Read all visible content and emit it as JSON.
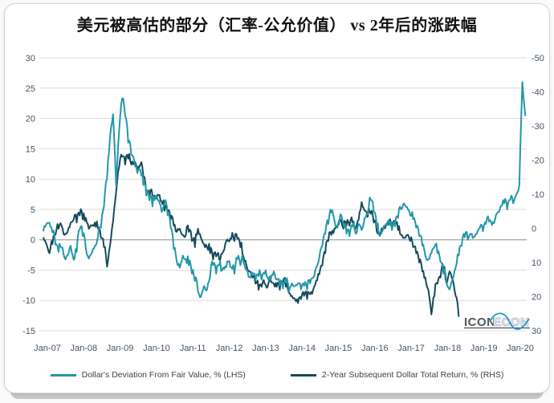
{
  "header": {
    "title": "美元被高估的部分（汇率-公允价值） vs 2年后的涨跌幅"
  },
  "watermark": {
    "text_bold": "ICON",
    "text_light": "ECON"
  },
  "chart_data": {
    "type": "line",
    "title": "美元被高估的部分（汇率-公允价值） vs 2年后的涨跌幅",
    "x_start": "Jan-07",
    "x_frequency": "monthly",
    "x_tick_labels": [
      "Jan-07",
      "Jan-08",
      "Jan-09",
      "Jan-10",
      "Jan-11",
      "Jan-12",
      "Jan-13",
      "Jan-14",
      "Jan-15",
      "Jan-16",
      "Jan-17",
      "Jan-18",
      "Jan-19",
      "Jan-20"
    ],
    "left_axis": {
      "ticks": [
        30,
        25,
        20,
        15,
        10,
        5,
        0,
        -5,
        -10,
        -15
      ],
      "range": [
        -15,
        30
      ],
      "inverted": false
    },
    "right_axis": {
      "ticks": [
        -50,
        -40,
        -30,
        -20,
        -10,
        0,
        10,
        20,
        30
      ],
      "range": [
        -50,
        30
      ],
      "inverted": true
    },
    "grid": true,
    "legend_position": "bottom",
    "series": [
      {
        "name": "Dollar's Deviation From Fair Value, % (LHS)",
        "axis": "left",
        "color": "#2397A9",
        "values": [
          1.5,
          2.6,
          2.8,
          1.2,
          -0.8,
          -2.0,
          -1.3,
          -3.0,
          -2.6,
          -1.0,
          -3.3,
          -2.0,
          1.7,
          0.6,
          -1.4,
          -3.1,
          -2.2,
          -1.0,
          0.5,
          2.0,
          5.5,
          10.0,
          17.0,
          20.7,
          9.0,
          18.0,
          23.3,
          20.5,
          16.0,
          14.0,
          13.0,
          11.0,
          11.5,
          9.0,
          7.5,
          6.5,
          5.5,
          7.2,
          6.5,
          4.6,
          6.0,
          4.0,
          2.0,
          -1.5,
          -3.6,
          -4.6,
          -2.6,
          -3.2,
          -4.2,
          -5.6,
          -6.8,
          -8.6,
          -9.4,
          -7.6,
          -8.2,
          -6.0,
          -4.2,
          -5.6,
          -4.2,
          -5.0,
          -4.4,
          -3.6,
          -4.6,
          -5.6,
          -3.2,
          -4.2,
          -3.6,
          -5.0,
          -6.2,
          -5.4,
          -6.6,
          -6.0,
          -6.6,
          -5.6,
          -6.2,
          -6.6,
          -5.2,
          -6.6,
          -7.6,
          -8.0,
          -7.0,
          -8.6,
          -7.2,
          -7.6,
          -7.2,
          -8.2,
          -7.6,
          -8.2,
          -7.2,
          -6.2,
          -4.6,
          -3.0,
          -1.0,
          1.0,
          2.6,
          4.5,
          3.2,
          2.0,
          4.2,
          2.6,
          1.0,
          0.6,
          2.2,
          1.0,
          2.6,
          1.6,
          3.6,
          4.2,
          6.6,
          4.6,
          2.2,
          0.6,
          1.6,
          2.6,
          3.2,
          1.6,
          2.2,
          3.6,
          5.0,
          6.0,
          5.4,
          4.0,
          3.4,
          2.0,
          0.6,
          -1.0,
          -2.6,
          -3.2,
          -2.2,
          -1.2,
          -2.2,
          -3.6,
          -5.6,
          -7.2,
          -8.2,
          -6.6,
          -4.6,
          -2.6,
          -1.0,
          0.4,
          0.0,
          1.0,
          0.4,
          1.0,
          2.0,
          1.4,
          2.6,
          3.0,
          2.4,
          3.4,
          4.6,
          5.6,
          6.0,
          5.0,
          6.6,
          6.0,
          7.4,
          9.0,
          26.0,
          20.5
        ]
      },
      {
        "name": "2-Year Subsequent Dollar Total Return, % (RHS)",
        "axis": "right",
        "color": "#16495C",
        "values": [
          2.8,
          4.6,
          7.3,
          4.6,
          1.9,
          0.1,
          -0.8,
          1.9,
          1.0,
          -1.7,
          -2.6,
          -1.7,
          -3.8,
          -2.6,
          -3.1,
          0.1,
          -0.8,
          -1.7,
          0.1,
          2.8,
          5.5,
          11.2,
          5.0,
          -2.0,
          -10.6,
          -18.0,
          -21.0,
          -18.7,
          -20.4,
          -18.7,
          -19.5,
          -16.9,
          -18.7,
          -15.1,
          -9.7,
          -8.8,
          -9.7,
          -8.8,
          -9.7,
          -7.9,
          -5.2,
          -4.3,
          -2.6,
          -0.8,
          1.0,
          0.1,
          1.9,
          1.9,
          1.0,
          3.7,
          5.5,
          0.1,
          2.8,
          4.6,
          5.5,
          7.3,
          9.1,
          8.2,
          9.1,
          7.3,
          4.6,
          3.7,
          3.0,
          3.7,
          3.0,
          5.5,
          8.2,
          10.9,
          12.6,
          14.4,
          16.2,
          18.0,
          17.1,
          16.2,
          17.1,
          15.3,
          16.2,
          17.1,
          18.0,
          15.7,
          17.1,
          18.9,
          19.8,
          20.7,
          21.9,
          20.7,
          19.8,
          20.7,
          19.3,
          18.0,
          15.3,
          13.5,
          10.9,
          7.3,
          3.7,
          1.9,
          0.1,
          -0.8,
          -2.6,
          0.1,
          -0.8,
          -0.8,
          -1.7,
          0.1,
          -2.6,
          -7.7,
          -5.2,
          -3.4,
          -4.3,
          -1.7,
          1.0,
          1.6,
          0.1,
          -0.8,
          -2.0,
          0.1,
          -0.8,
          0.5,
          1.9,
          2.8,
          1.9,
          3.7,
          5.5,
          7.3,
          10.0,
          12.6,
          14.4,
          18.0,
          25.2,
          19.8,
          16.2,
          14.4,
          11.7,
          16.2,
          12.6,
          15.0,
          19.8,
          25.7
        ]
      }
    ]
  }
}
